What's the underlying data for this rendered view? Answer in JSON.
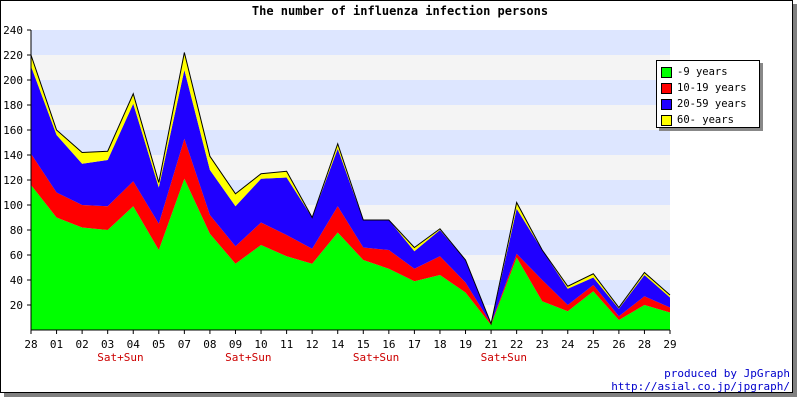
{
  "title": "The number of influenza infection persons",
  "credits": {
    "line1": "produced by JpGraph",
    "line2": "http://asial.co.jp/jpgraph/"
  },
  "colors": {
    "band_a": "#dde6ff",
    "band_b": "#f4f4f4",
    "axis": "#000000",
    "weekend": "#cc0000"
  },
  "chart_data": {
    "type": "area",
    "stacked": true,
    "title": "The number of influenza infection persons",
    "x": [
      "28",
      "01",
      "02",
      "03",
      "04",
      "05",
      "07",
      "08",
      "09",
      "10",
      "11",
      "12",
      "14",
      "15",
      "16",
      "17",
      "18",
      "19",
      "21",
      "22",
      "23",
      "24",
      "25",
      "26",
      "28",
      "29"
    ],
    "weekend_labels": [
      {
        "after_index": 3,
        "text": "Sat+Sun"
      },
      {
        "after_index": 8,
        "text": "Sat+Sun"
      },
      {
        "after_index": 13,
        "text": "Sat+Sun"
      },
      {
        "after_index": 18,
        "text": "Sat+Sun"
      }
    ],
    "ylim": [
      0,
      240
    ],
    "yticks": [
      20,
      40,
      60,
      80,
      100,
      120,
      140,
      160,
      180,
      200,
      220,
      240
    ],
    "legend_position": "right",
    "series": [
      {
        "name": "-9 years",
        "color": "#00ff00",
        "values": [
          116,
          90,
          82,
          80,
          99,
          64,
          121,
          77,
          53,
          68,
          59,
          53,
          78,
          56,
          49,
          39,
          44,
          30,
          4,
          58,
          23,
          15,
          31,
          8,
          20,
          14
        ]
      },
      {
        "name": "10-19 years",
        "color": "#ff0000",
        "values": [
          25,
          20,
          18,
          19,
          20,
          21,
          32,
          15,
          14,
          18,
          17,
          12,
          21,
          10,
          15,
          10,
          15,
          8,
          1,
          3,
          17,
          5,
          5,
          3,
          7,
          4
        ]
      },
      {
        "name": "20-59 years",
        "color": "#2000ff",
        "values": [
          70,
          46,
          33,
          37,
          62,
          29,
          55,
          36,
          32,
          35,
          46,
          25,
          46,
          22,
          24,
          14,
          21,
          18,
          0,
          36,
          24,
          13,
          6,
          6,
          17,
          8
        ]
      },
      {
        "name": "60- years",
        "color": "#ffff00",
        "values": [
          9,
          4,
          9,
          7,
          8,
          4,
          14,
          11,
          10,
          4,
          5,
          0,
          4,
          0,
          0,
          3,
          1,
          0,
          0,
          5,
          0,
          2,
          3,
          1,
          2,
          2
        ]
      }
    ]
  }
}
